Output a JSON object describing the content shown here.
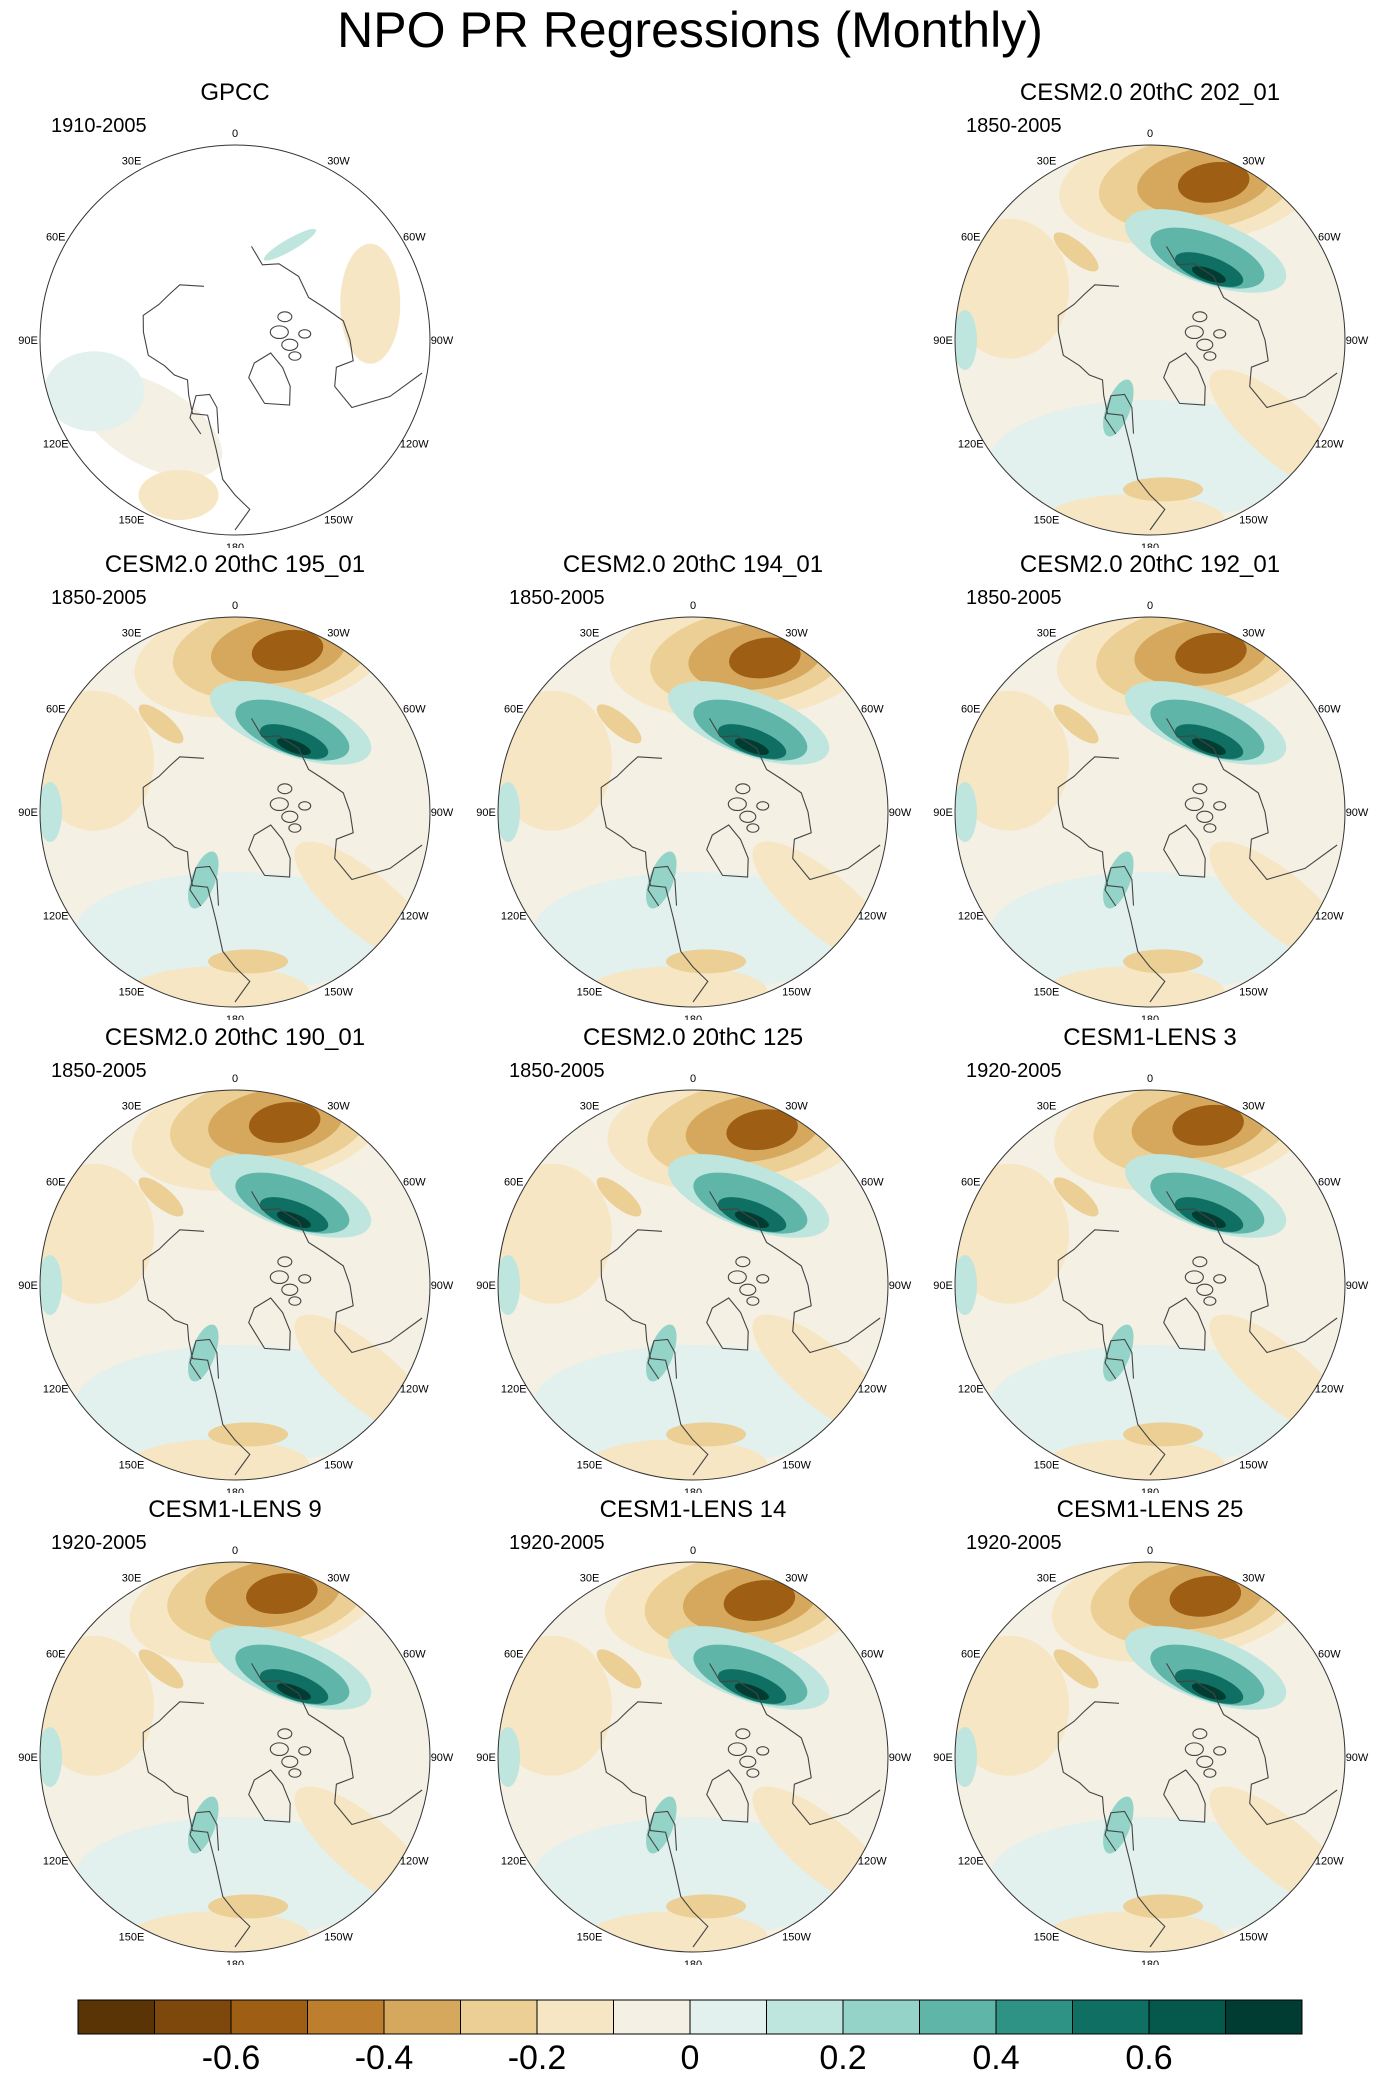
{
  "chart_data": {
    "type": "polar-map-panels",
    "title": "NPO PR Regressions (Monthly)",
    "projection": "north polar stereographic",
    "longitude_labels": [
      "180",
      "150E",
      "120E",
      "90E",
      "60E",
      "30E",
      "0",
      "30W",
      "60W",
      "90W",
      "120W",
      "150W"
    ],
    "panels": [
      {
        "title": "GPCC",
        "period": "1910-2005",
        "row": 0,
        "col": 0,
        "land_only": true
      },
      {
        "title": "CESM2.0 20thC 202_01",
        "period": "1850-2005",
        "row": 0,
        "col": 2
      },
      {
        "title": "CESM2.0 20thC 195_01",
        "period": "1850-2005",
        "row": 1,
        "col": 0
      },
      {
        "title": "CESM2.0 20thC 194_01",
        "period": "1850-2005",
        "row": 1,
        "col": 1
      },
      {
        "title": "CESM2.0 20thC 192_01",
        "period": "1850-2005",
        "row": 1,
        "col": 2
      },
      {
        "title": "CESM2.0 20thC 190_01",
        "period": "1850-2005",
        "row": 2,
        "col": 0
      },
      {
        "title": "CESM2.0 20thC 125",
        "period": "1850-2005",
        "row": 2,
        "col": 1
      },
      {
        "title": "CESM1-LENS 3",
        "period": "1920-2005",
        "row": 2,
        "col": 2
      },
      {
        "title": "CESM1-LENS 9",
        "period": "1920-2005",
        "row": 3,
        "col": 0
      },
      {
        "title": "CESM1-LENS 14",
        "period": "1920-2005",
        "row": 3,
        "col": 1
      },
      {
        "title": "CESM1-LENS 25",
        "period": "1920-2005",
        "row": 3,
        "col": 2
      }
    ],
    "colorbar": {
      "levels": [
        -0.7,
        -0.6,
        -0.5,
        -0.4,
        -0.3,
        -0.2,
        -0.1,
        0,
        0.1,
        0.2,
        0.3,
        0.4,
        0.5,
        0.6,
        0.7
      ],
      "colors": [
        "#5a3405",
        "#7e470b",
        "#9e5e14",
        "#bd7f2e",
        "#d6a85d",
        "#ebcf94",
        "#f6e6c3",
        "#f5f0e4",
        "#e2f0ee",
        "#bfe5df",
        "#93d3c8",
        "#5fb6a8",
        "#2e9285",
        "#0f6f62",
        "#04594c",
        "#013c33"
      ],
      "tick_values": [
        -0.6,
        -0.4,
        -0.2,
        0,
        0.2,
        0.4,
        0.6
      ],
      "tick_labels": [
        "-0.6",
        "-0.4",
        "-0.2",
        "0",
        "0.2",
        "0.4",
        "0.6"
      ]
    }
  }
}
